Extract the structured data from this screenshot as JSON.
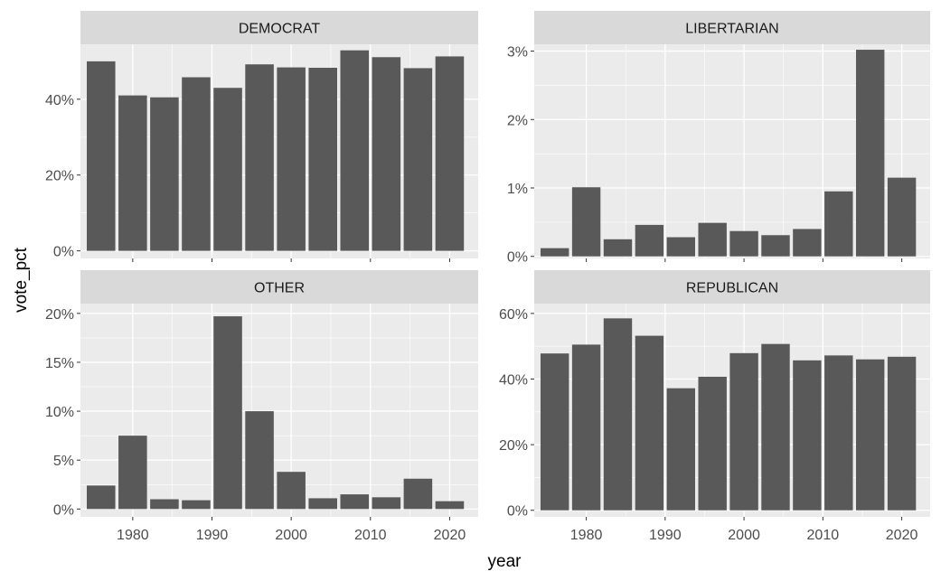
{
  "chart_data": {
    "type": "bar",
    "xlabel": "year",
    "ylabel": "vote_pct",
    "x": [
      1976,
      1980,
      1984,
      1988,
      1992,
      1996,
      2000,
      2004,
      2008,
      2012,
      2016,
      2020
    ],
    "xlim": [
      1973.4,
      2023.6
    ],
    "x_ticks": [
      1980,
      1990,
      2000,
      2010,
      2020
    ],
    "grid": true,
    "facets": [
      {
        "name": "DEMOCRAT",
        "values": [
          0.5,
          0.41,
          0.405,
          0.458,
          0.43,
          0.492,
          0.484,
          0.483,
          0.529,
          0.511,
          0.482,
          0.513
        ],
        "ylim": [
          -0.02,
          0.545
        ],
        "yticks": [
          0,
          0.2,
          0.4
        ],
        "ytick_labels": [
          "0%",
          "20%",
          "40%"
        ]
      },
      {
        "name": "LIBERTARIAN",
        "values": [
          0.0012,
          0.0101,
          0.0025,
          0.0046,
          0.0028,
          0.0049,
          0.0037,
          0.0031,
          0.004,
          0.0095,
          0.0302,
          0.0115
        ],
        "ylim": [
          -0.0003,
          0.031
        ],
        "yticks": [
          0,
          0.01,
          0.02,
          0.03
        ],
        "ytick_labels": [
          "0%",
          "1%",
          "2%",
          "3%"
        ]
      },
      {
        "name": "OTHER",
        "values": [
          0.024,
          0.075,
          0.01,
          0.009,
          0.197,
          0.1,
          0.038,
          0.011,
          0.015,
          0.012,
          0.031,
          0.008
        ],
        "ylim": [
          -0.008,
          0.21
        ],
        "yticks": [
          0,
          0.05,
          0.1,
          0.15,
          0.2
        ],
        "ytick_labels": [
          "0%",
          "5%",
          "10%",
          "15%",
          "20%"
        ]
      },
      {
        "name": "REPUBLICAN",
        "values": [
          0.478,
          0.505,
          0.585,
          0.532,
          0.372,
          0.407,
          0.479,
          0.507,
          0.457,
          0.472,
          0.46,
          0.468
        ],
        "ylim": [
          -0.02,
          0.63
        ],
        "yticks": [
          0,
          0.2,
          0.4,
          0.6
        ],
        "ytick_labels": [
          "0%",
          "20%",
          "40%",
          "60%"
        ]
      }
    ]
  },
  "colors": {
    "bar": "#595959",
    "panel": "#ebebeb",
    "strip": "#d9d9d9",
    "grid_major": "#ffffff",
    "tick_text": "#4d4d4d"
  }
}
